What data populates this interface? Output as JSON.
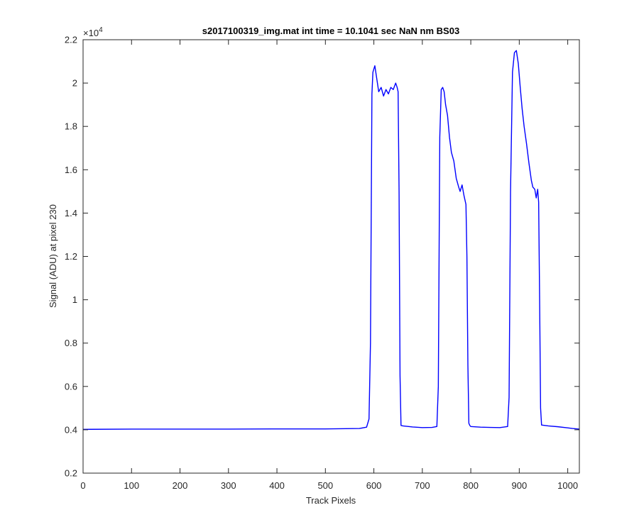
{
  "chart_data": {
    "type": "line",
    "title": "s2017100319_img.mat int time = 10.1041 sec  NaN nm BS03",
    "xlabel": "Track Pixels",
    "ylabel": "Signal (ADU) at pixel 230",
    "y_exponent_label": "×10",
    "y_exponent_power": "4",
    "xlim": [
      0,
      1024
    ],
    "ylim": [
      2000,
      22000
    ],
    "x_ticks": [
      0,
      100,
      200,
      300,
      400,
      500,
      600,
      700,
      800,
      900,
      1000
    ],
    "x_tick_labels": [
      "0",
      "100",
      "200",
      "300",
      "400",
      "500",
      "600",
      "700",
      "800",
      "900",
      "1000"
    ],
    "y_ticks": [
      2000,
      4000,
      6000,
      8000,
      10000,
      12000,
      14000,
      16000,
      18000,
      20000,
      22000
    ],
    "y_tick_labels": [
      "0.2",
      "0.4",
      "0.6",
      "0.8",
      "1",
      "1.2",
      "1.4",
      "1.6",
      "1.8",
      "2",
      "2.2"
    ],
    "grid": false,
    "box": true,
    "series": [
      {
        "color": "#0000ff",
        "x": [
          0,
          100,
          200,
          300,
          400,
          500,
          570,
          585,
          590,
          593,
          596,
          598,
          602,
          606,
          610,
          615,
          620,
          625,
          630,
          635,
          640,
          645,
          648,
          650,
          652,
          654,
          656,
          660,
          680,
          700,
          720,
          730,
          733,
          736,
          739,
          742,
          745,
          748,
          752,
          756,
          760,
          765,
          770,
          775,
          778,
          782,
          786,
          790,
          792,
          794,
          796,
          798,
          800,
          820,
          840,
          860,
          876,
          879,
          882,
          886,
          890,
          894,
          898,
          902,
          906,
          910,
          915,
          920,
          925,
          928,
          932,
          935,
          938,
          940,
          942,
          944,
          946,
          960,
          980,
          1000,
          1010,
          1024
        ],
        "y": [
          4020,
          4030,
          4030,
          4030,
          4040,
          4040,
          4060,
          4120,
          4500,
          8000,
          19500,
          20500,
          20800,
          20200,
          19600,
          19800,
          19400,
          19700,
          19500,
          19800,
          19700,
          20000,
          19800,
          19600,
          15000,
          6500,
          4200,
          4180,
          4130,
          4100,
          4110,
          4150,
          6000,
          17500,
          19700,
          19800,
          19600,
          19000,
          18500,
          17500,
          16800,
          16400,
          15600,
          15200,
          15000,
          15300,
          14800,
          14400,
          12000,
          7000,
          4300,
          4200,
          4150,
          4120,
          4110,
          4100,
          4150,
          5500,
          15000,
          20500,
          21400,
          21500,
          20900,
          19800,
          18800,
          18000,
          17200,
          16300,
          15500,
          15200,
          15100,
          14700,
          15100,
          14500,
          10000,
          5000,
          4220,
          4180,
          4140,
          4090,
          4060,
          4030
        ]
      }
    ]
  }
}
